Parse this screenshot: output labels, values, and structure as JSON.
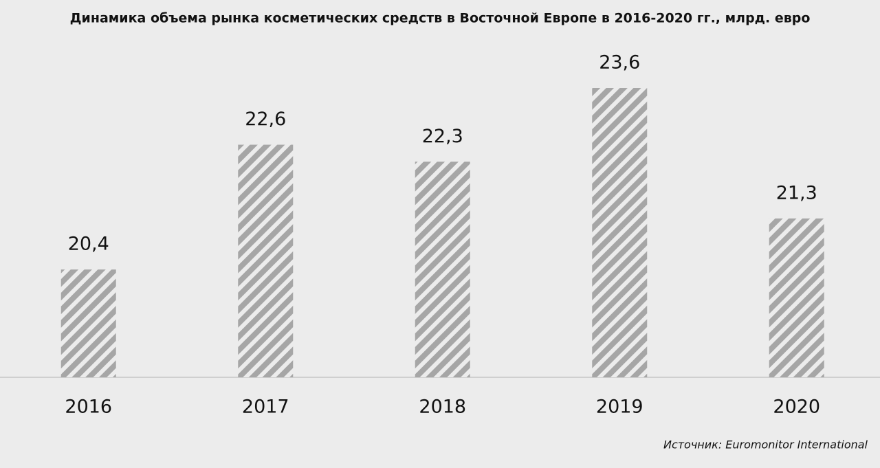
{
  "chart_data": {
    "type": "bar",
    "title": "Динамика объема рынка косметических средств в Восточной Европе в 2016-2020 гг., млрд. евро",
    "categories": [
      "2016",
      "2017",
      "2018",
      "2019",
      "2020"
    ],
    "values": [
      20.4,
      22.6,
      22.3,
      23.6,
      21.3
    ],
    "value_labels": [
      "20,4",
      "22,6",
      "22,3",
      "23,6",
      "21,3"
    ],
    "color": "#a6a6a6",
    "ylim": [
      18.5,
      24
    ],
    "source": "Источник: Euromonitor International"
  }
}
